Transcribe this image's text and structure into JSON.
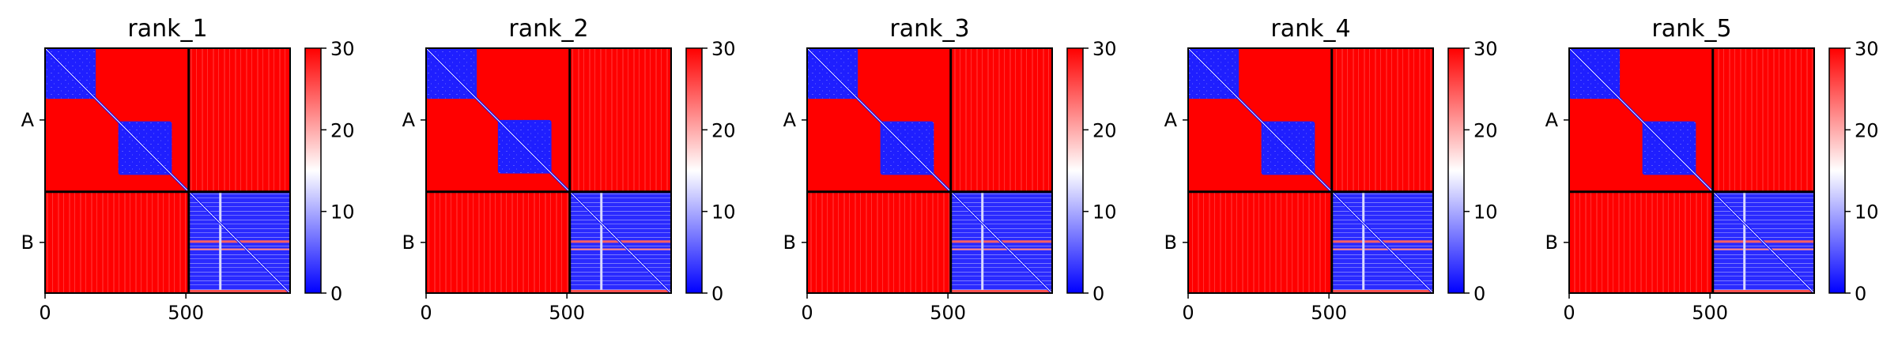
{
  "chart_data": [
    {
      "type": "heatmap",
      "title": "rank_1",
      "x_ticks": [
        0,
        500
      ],
      "y_tick_labels": [
        "A",
        "B"
      ],
      "chains": [
        {
          "name": "A",
          "length": 510
        },
        {
          "name": "B",
          "length": 360
        }
      ],
      "domains_chain_A": [
        [
          0,
          180
        ],
        [
          260,
          450
        ]
      ],
      "colorbar": {
        "range": [
          0,
          30
        ],
        "ticks": [
          0,
          10,
          20,
          30
        ],
        "cmap": [
          "#0000ff",
          "#ffffff",
          "#ff0000"
        ]
      }
    },
    {
      "type": "heatmap",
      "title": "rank_2",
      "x_ticks": [
        0,
        500
      ],
      "y_tick_labels": [
        "A",
        "B"
      ],
      "chains": [
        {
          "name": "A",
          "length": 510
        },
        {
          "name": "B",
          "length": 360
        }
      ],
      "domains_chain_A": [
        [
          0,
          180
        ],
        [
          255,
          445
        ]
      ],
      "colorbar": {
        "range": [
          0,
          30
        ],
        "ticks": [
          0,
          10,
          20,
          30
        ],
        "cmap": [
          "#0000ff",
          "#ffffff",
          "#ff0000"
        ]
      }
    },
    {
      "type": "heatmap",
      "title": "rank_3",
      "x_ticks": [
        0,
        500
      ],
      "y_tick_labels": [
        "A",
        "B"
      ],
      "chains": [
        {
          "name": "A",
          "length": 510
        },
        {
          "name": "B",
          "length": 360
        }
      ],
      "domains_chain_A": [
        [
          0,
          180
        ],
        [
          260,
          450
        ]
      ],
      "colorbar": {
        "range": [
          0,
          30
        ],
        "ticks": [
          0,
          10,
          20,
          30
        ],
        "cmap": [
          "#0000ff",
          "#ffffff",
          "#ff0000"
        ]
      }
    },
    {
      "type": "heatmap",
      "title": "rank_4",
      "x_ticks": [
        0,
        500
      ],
      "y_tick_labels": [
        "A",
        "B"
      ],
      "chains": [
        {
          "name": "A",
          "length": 510
        },
        {
          "name": "B",
          "length": 360
        }
      ],
      "domains_chain_A": [
        [
          0,
          180
        ],
        [
          260,
          450
        ]
      ],
      "colorbar": {
        "range": [
          0,
          30
        ],
        "ticks": [
          0,
          10,
          20,
          30
        ],
        "cmap": [
          "#0000ff",
          "#ffffff",
          "#ff0000"
        ]
      }
    },
    {
      "type": "heatmap",
      "title": "rank_5",
      "x_ticks": [
        0,
        500
      ],
      "y_tick_labels": [
        "A",
        "B"
      ],
      "chains": [
        {
          "name": "A",
          "length": 510
        },
        {
          "name": "B",
          "length": 360
        }
      ],
      "domains_chain_A": [
        [
          0,
          180
        ],
        [
          260,
          450
        ]
      ],
      "colorbar": {
        "range": [
          0,
          30
        ],
        "ticks": [
          0,
          10,
          20,
          30
        ],
        "cmap": [
          "#0000ff",
          "#ffffff",
          "#ff0000"
        ]
      }
    }
  ]
}
